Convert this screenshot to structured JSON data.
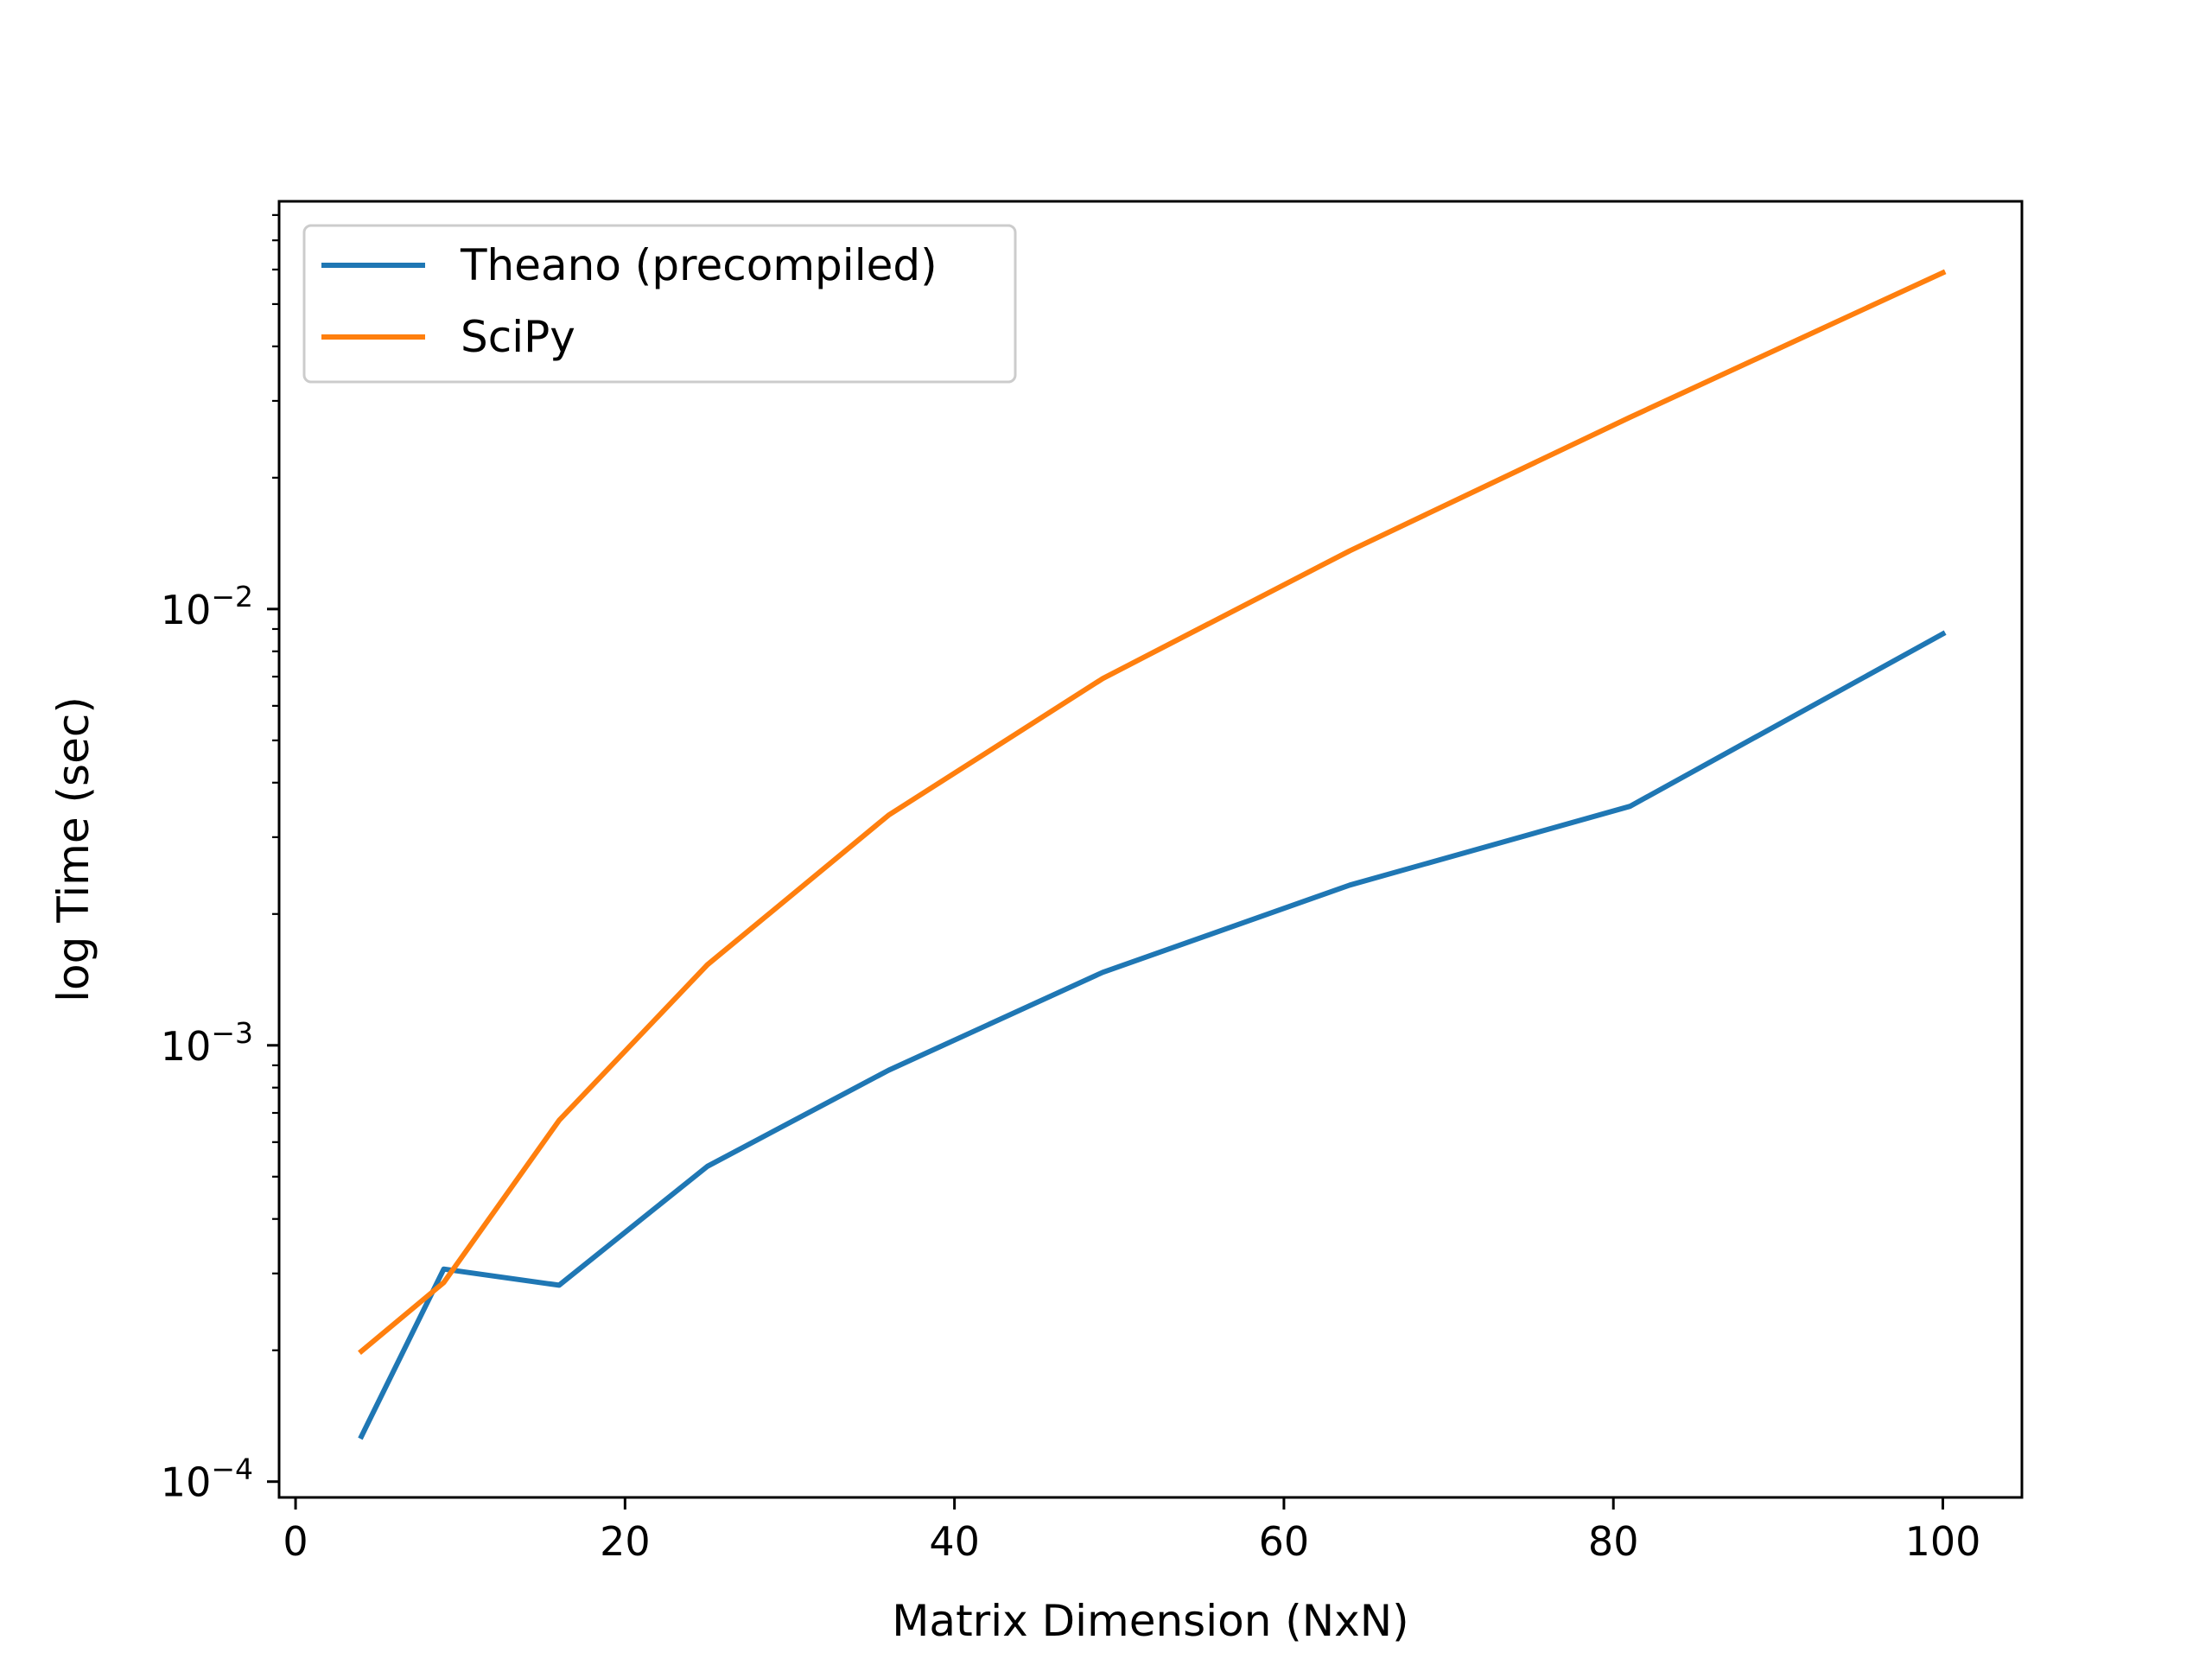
{
  "chart_data": {
    "type": "line",
    "title": "",
    "xlabel": "Matrix Dimension (NxN)",
    "ylabel": "log Time (sec)",
    "xlim": [
      -1,
      104.8
    ],
    "ylim": [
      9.2e-05,
      0.086
    ],
    "yscale": "log",
    "grid": false,
    "legend_position": "top-left",
    "x": [
      4,
      9,
      16,
      25,
      36,
      49,
      64,
      81,
      100
    ],
    "x_ticks": [
      0,
      20,
      40,
      60,
      80,
      100
    ],
    "x_tick_labels": [
      "0",
      "20",
      "40",
      "60",
      "80",
      "100"
    ],
    "y_ticks": [
      0.0001,
      0.001,
      0.01
    ],
    "y_tick_labels": [
      {
        "base": "10",
        "exp": "−4"
      },
      {
        "base": "10",
        "exp": "−3"
      },
      {
        "base": "10",
        "exp": "−2"
      }
    ],
    "series": [
      {
        "name": "Theano (precompiled)",
        "color": "#1f77b4",
        "values": [
          0.000127,
          0.000307,
          0.000282,
          0.000528,
          0.000877,
          0.00147,
          0.00233,
          0.00353,
          0.00877
        ]
      },
      {
        "name": "SciPy",
        "color": "#ff7f0e",
        "values": [
          0.000199,
          0.000286,
          0.000673,
          0.00153,
          0.00337,
          0.00693,
          0.0136,
          0.0275,
          0.059
        ]
      }
    ]
  }
}
